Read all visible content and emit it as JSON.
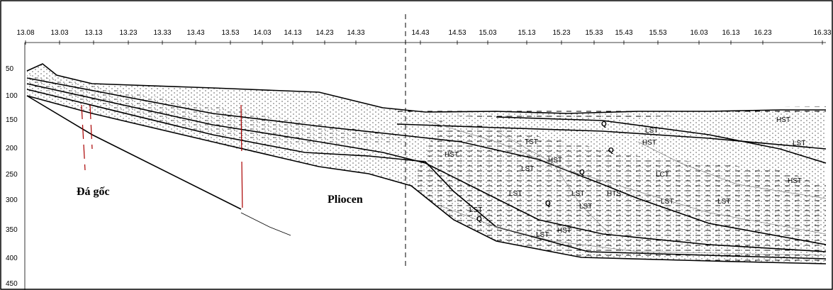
{
  "axis_top": [
    "13.08",
    "13.03",
    "13.13",
    "13.23",
    "13.33",
    "13.43",
    "13.53",
    "14.03",
    "14.13",
    "14.23",
    "14.33",
    "14.43",
    "14.53",
    "15.03",
    "15.13",
    "15.23",
    "15.33",
    "15.43",
    "15.53",
    "16.03",
    "16.13",
    "16.23",
    "16.33"
  ],
  "axis_left": [
    "50",
    "100",
    "150",
    "200",
    "250",
    "300",
    "350",
    "400",
    "450"
  ],
  "annotations": {
    "bedrock": "Đá gốc",
    "pliocene": "Pliocen"
  },
  "labels": [
    "HST",
    "LST",
    "HST",
    "Q",
    "LST",
    "HST",
    "Q",
    "TST",
    "HST",
    "LST",
    "HST",
    "Q",
    "LCT",
    "LST",
    "LST",
    "HTS",
    "LST",
    "LST",
    "LST",
    "Q",
    "LST",
    "Q",
    "HST",
    "LST"
  ]
}
